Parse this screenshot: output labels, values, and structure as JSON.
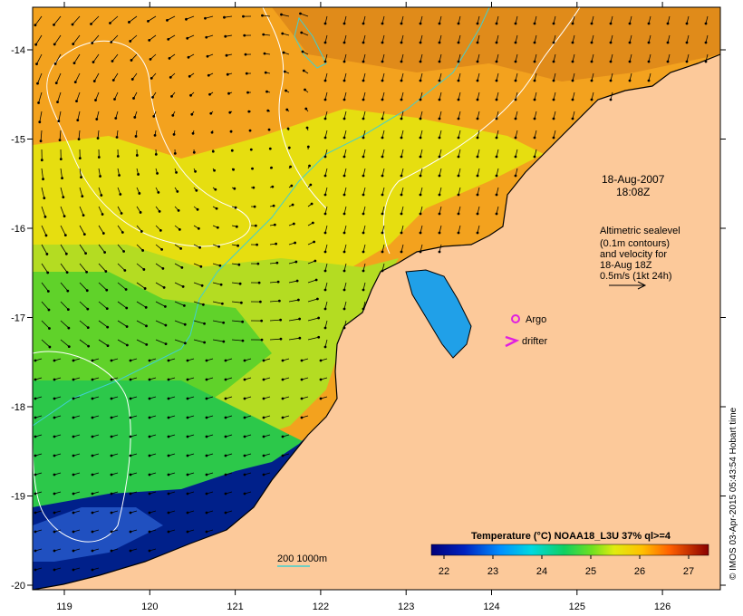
{
  "map": {
    "timestamp_line1": "18-Aug-2007",
    "timestamp_line2": "18:08Z",
    "altimetry_note": [
      "Altimetric sealevel",
      "(0.1m contours)",
      "and velocity for",
      "18-Aug 18Z",
      "0.5m/s (1kt 24h)"
    ],
    "argo_label": "Argo",
    "drifter_label": "drifter",
    "depth_legend": "200  1000m",
    "credit": "© IMOS 03-Apr-2015 05:43:54 Hobart time",
    "colorbar": {
      "title": "Temperature (°C) NOAA18_L3U 37% ql>=4",
      "ticks": [
        "22",
        "23",
        "24",
        "25",
        "26",
        "27"
      ]
    },
    "lon_ticks": [
      "119",
      "120",
      "121",
      "122",
      "123",
      "124",
      "125",
      "126"
    ],
    "lat_ticks": [
      "-14",
      "-15",
      "-16",
      "-17",
      "-18",
      "-19",
      "-20"
    ],
    "colors": {
      "land": "#fcc99a",
      "argo_marker": "#e020e0",
      "drifter_marker": "#e020e0",
      "contour_200m": "#40d0d0",
      "sealevel_contour": "#ffffff",
      "coast": "#000000"
    }
  }
}
